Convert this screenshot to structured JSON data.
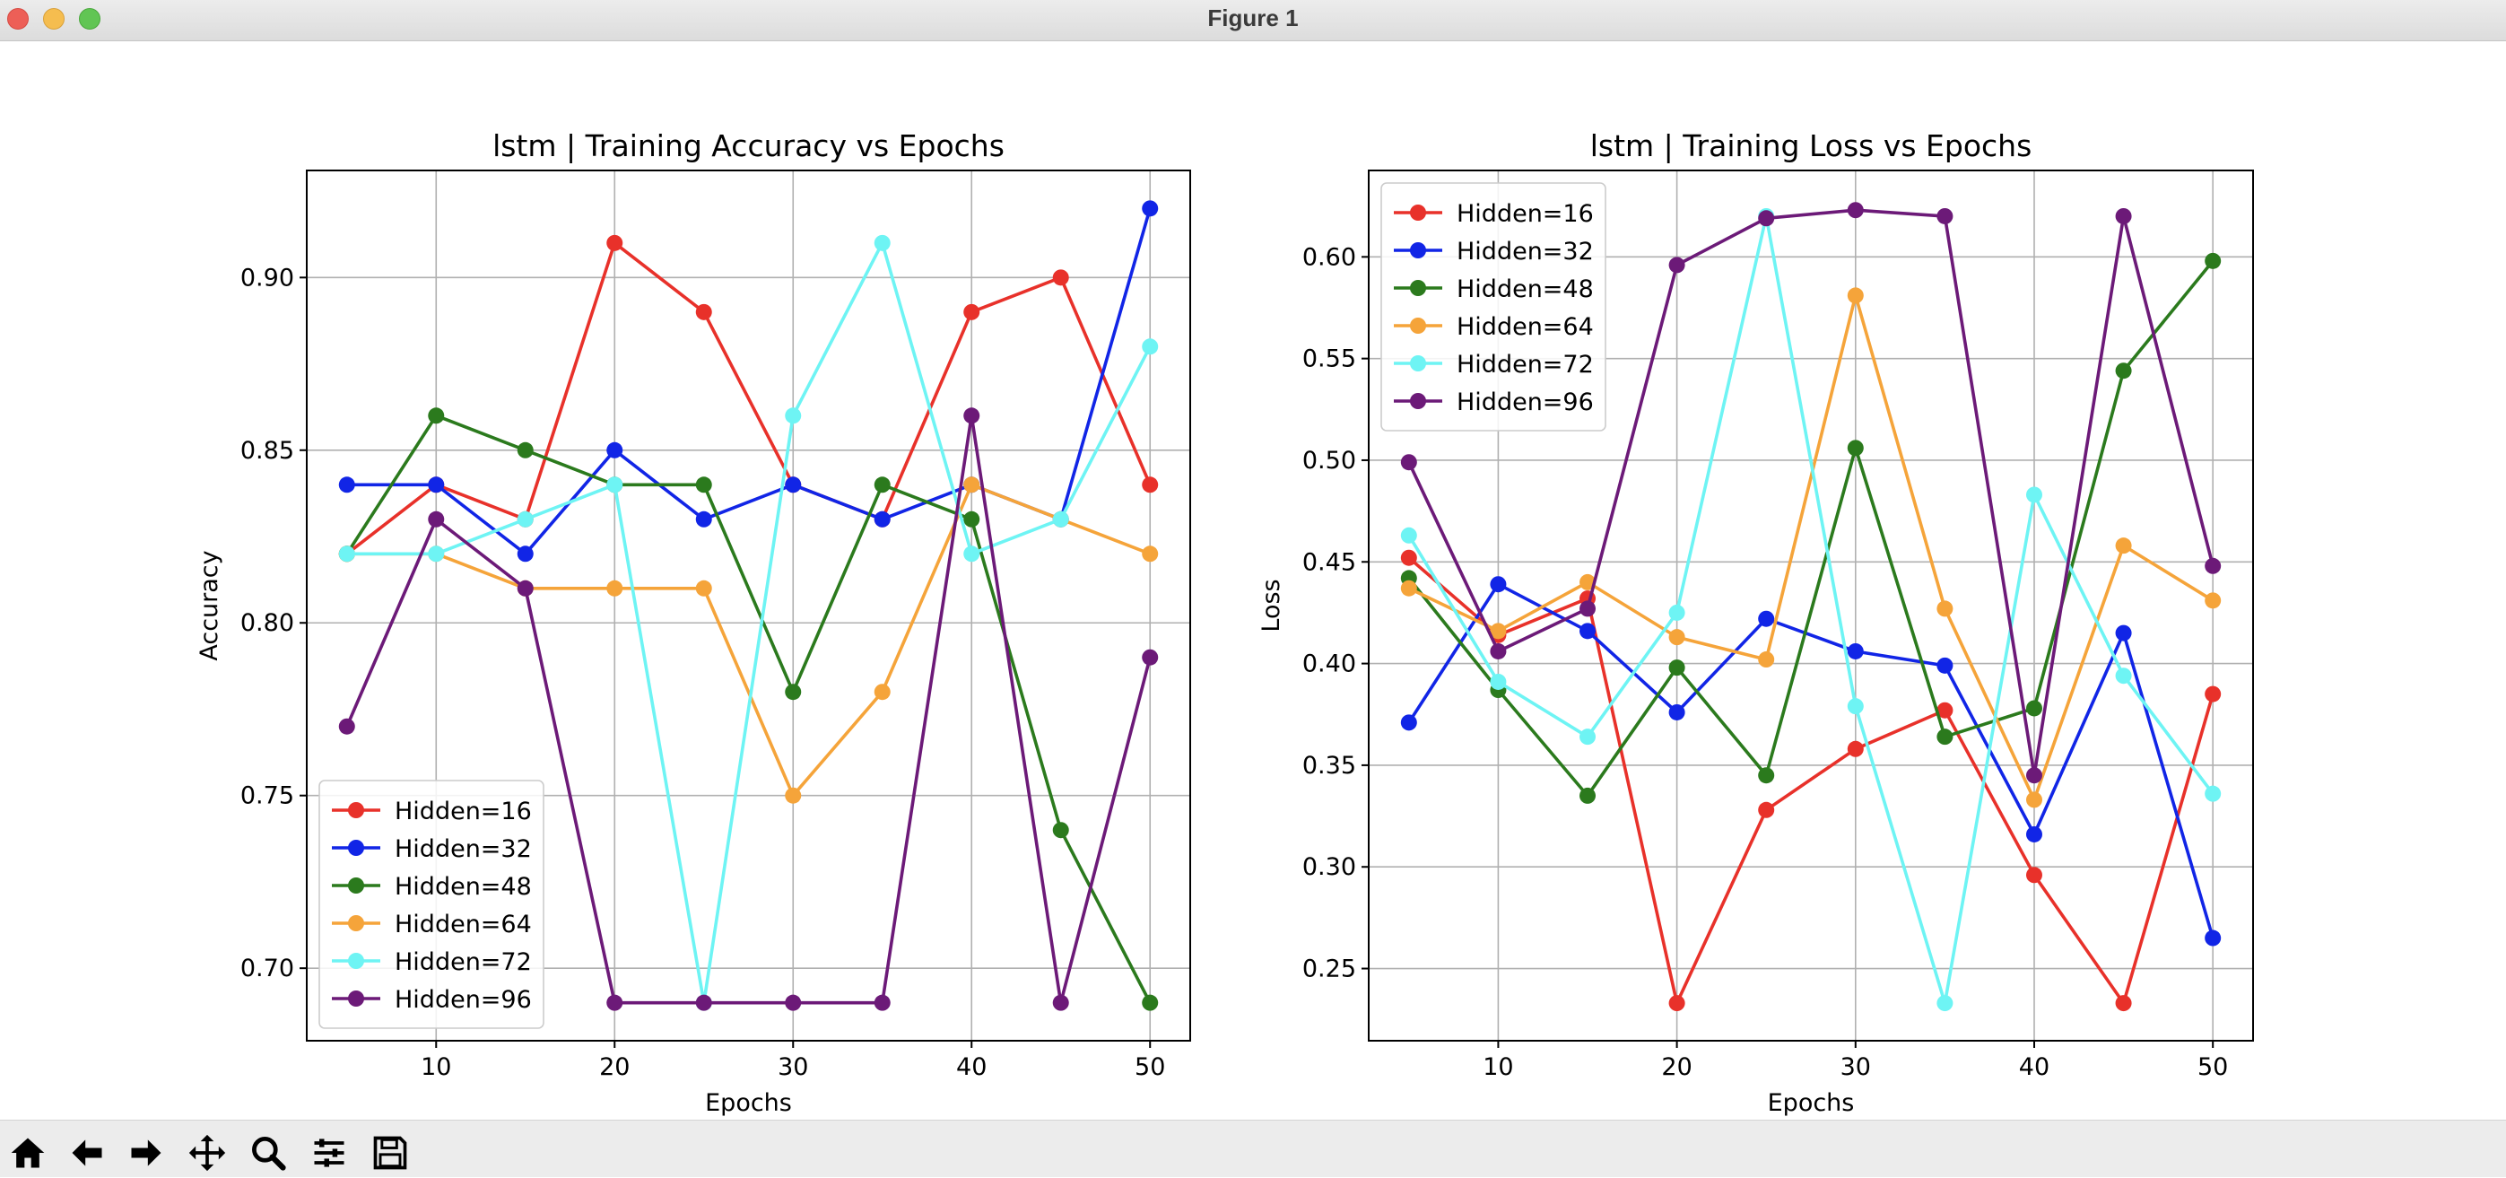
{
  "window": {
    "title": "Figure 1"
  },
  "toolbar": {
    "buttons": [
      {
        "name": "home-icon",
        "label": "Home"
      },
      {
        "name": "back-arrow-icon",
        "label": "Back"
      },
      {
        "name": "forward-arrow-icon",
        "label": "Forward"
      },
      {
        "name": "pan-move-icon",
        "label": "Pan"
      },
      {
        "name": "zoom-magnifier-icon",
        "label": "Zoom"
      },
      {
        "name": "configure-sliders-icon",
        "label": "Configure subplots"
      },
      {
        "name": "save-floppy-icon",
        "label": "Save"
      }
    ]
  },
  "colors": {
    "Hidden=16": "#e8312a",
    "Hidden=32": "#1125e6",
    "Hidden=48": "#2b7a1d",
    "Hidden=64": "#f5a43a",
    "Hidden=72": "#6ef4f4",
    "Hidden=96": "#6c1a78",
    "grid": "#b0b0b0"
  },
  "chart_data": [
    {
      "type": "line",
      "title": "lstm | Training Accuracy vs Epochs",
      "xlabel": "Epochs",
      "ylabel": "Accuracy",
      "x": [
        5,
        10,
        15,
        20,
        25,
        30,
        35,
        40,
        45,
        50
      ],
      "xlim": [
        2.75,
        52.25
      ],
      "ylim": [
        0.679,
        0.931
      ],
      "xticks": [
        10,
        20,
        30,
        40,
        50
      ],
      "xtick_labels": [
        "10",
        "20",
        "30",
        "40",
        "50"
      ],
      "yticks": [
        0.7,
        0.75,
        0.8,
        0.85,
        0.9
      ],
      "ytick_labels": [
        "0.70",
        "0.75",
        "0.80",
        "0.85",
        "0.90"
      ],
      "grid": true,
      "legend": "lower-left",
      "series": [
        {
          "name": "Hidden=16",
          "values": [
            0.82,
            0.84,
            0.83,
            0.91,
            0.89,
            0.84,
            0.83,
            0.89,
            0.9,
            0.84
          ]
        },
        {
          "name": "Hidden=32",
          "values": [
            0.84,
            0.84,
            0.82,
            0.85,
            0.83,
            0.84,
            0.83,
            0.84,
            0.83,
            0.92
          ]
        },
        {
          "name": "Hidden=48",
          "values": [
            0.82,
            0.86,
            0.85,
            0.84,
            0.84,
            0.78,
            0.84,
            0.83,
            0.74,
            0.69
          ]
        },
        {
          "name": "Hidden=64",
          "values": [
            0.82,
            0.82,
            0.81,
            0.81,
            0.81,
            0.75,
            0.78,
            0.84,
            0.83,
            0.82
          ]
        },
        {
          "name": "Hidden=72",
          "values": [
            0.82,
            0.82,
            0.83,
            0.84,
            0.69,
            0.86,
            0.91,
            0.82,
            0.83,
            0.88
          ]
        },
        {
          "name": "Hidden=96",
          "values": [
            0.77,
            0.83,
            0.81,
            0.69,
            0.69,
            0.69,
            0.69,
            0.86,
            0.69,
            0.79
          ]
        }
      ]
    },
    {
      "type": "line",
      "title": "lstm | Training Loss vs Epochs",
      "xlabel": "Epochs",
      "ylabel": "Loss",
      "x": [
        5,
        10,
        15,
        20,
        25,
        30,
        35,
        40,
        45,
        50
      ],
      "xlim": [
        2.75,
        52.25
      ],
      "ylim": [
        0.2145,
        0.6425
      ],
      "xticks": [
        10,
        20,
        30,
        40,
        50
      ],
      "xtick_labels": [
        "10",
        "20",
        "30",
        "40",
        "50"
      ],
      "yticks": [
        0.25,
        0.3,
        0.35,
        0.4,
        0.45,
        0.5,
        0.55,
        0.6
      ],
      "ytick_labels": [
        "0.25",
        "0.30",
        "0.35",
        "0.40",
        "0.45",
        "0.50",
        "0.55",
        "0.60"
      ],
      "grid": true,
      "legend": "upper-left",
      "series": [
        {
          "name": "Hidden=16",
          "values": [
            0.452,
            0.414,
            0.432,
            0.233,
            0.328,
            0.358,
            0.377,
            0.296,
            0.233,
            0.385
          ]
        },
        {
          "name": "Hidden=32",
          "values": [
            0.371,
            0.439,
            0.416,
            0.376,
            0.422,
            0.406,
            0.399,
            0.316,
            0.415,
            0.265
          ]
        },
        {
          "name": "Hidden=48",
          "values": [
            0.442,
            0.387,
            0.335,
            0.398,
            0.345,
            0.506,
            0.364,
            0.378,
            0.544,
            0.598
          ]
        },
        {
          "name": "Hidden=64",
          "values": [
            0.437,
            0.416,
            0.44,
            0.413,
            0.402,
            0.581,
            0.427,
            0.333,
            0.458,
            0.431
          ]
        },
        {
          "name": "Hidden=72",
          "values": [
            0.463,
            0.391,
            0.364,
            0.425,
            0.62,
            0.379,
            0.233,
            0.483,
            0.394,
            0.336
          ]
        },
        {
          "name": "Hidden=96",
          "values": [
            0.499,
            0.406,
            0.427,
            0.596,
            0.619,
            0.623,
            0.62,
            0.345,
            0.62,
            0.448
          ]
        }
      ]
    }
  ]
}
